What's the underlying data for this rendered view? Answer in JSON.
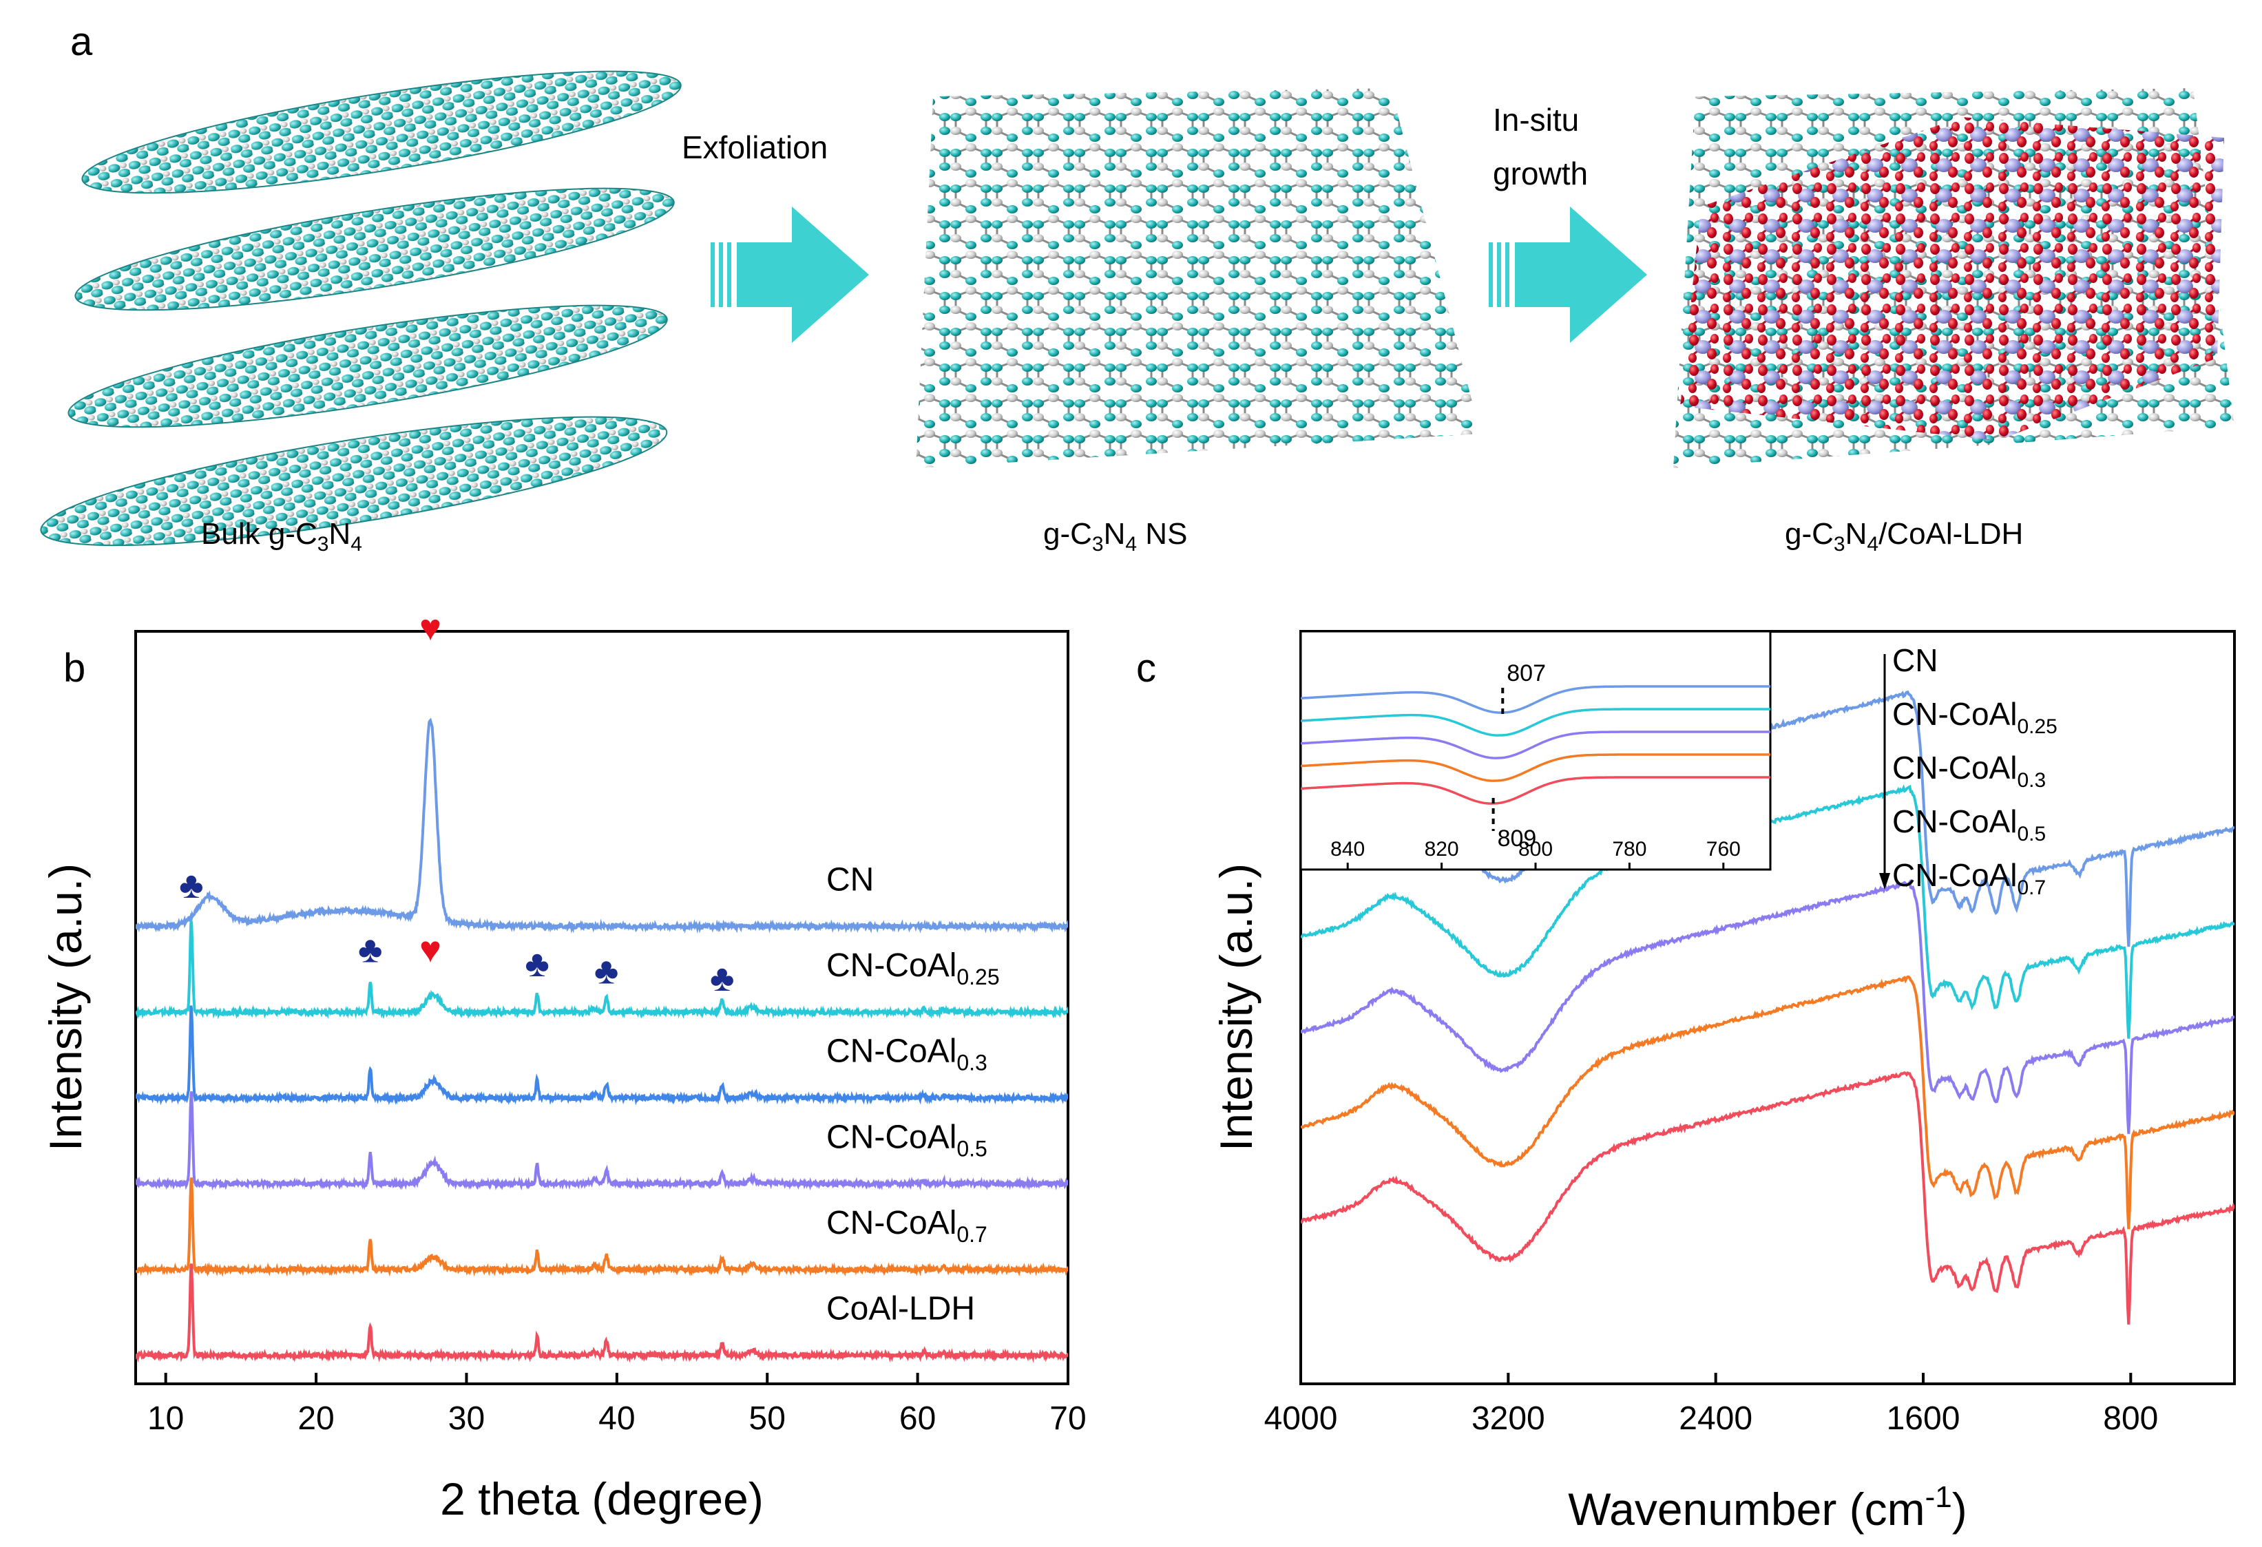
{
  "panel_labels": {
    "a": "a",
    "b": "b",
    "c": "c"
  },
  "schematic": {
    "step1": {
      "name": "Bulk g-C",
      "sub1": "3",
      "mid": "N",
      "sub2": "4",
      "suffix": ""
    },
    "arrow1": {
      "label": "Exfoliation"
    },
    "step2": {
      "name": "g-C",
      "sub1": "3",
      "mid": "N",
      "sub2": "4",
      "suffix": " NS"
    },
    "arrow2": {
      "label_line1": "In-situ",
      "label_line2": "growth"
    },
    "step3": {
      "name": "g-C",
      "sub1": "3",
      "mid": "N",
      "sub2": "4",
      "suffix": "/CoAl-LDH"
    },
    "colors": {
      "nitrogen": "#20b2b2",
      "carbon": "#d9d9d9",
      "oxygen": "#d0021b",
      "metal": "#9a9ae0",
      "arrow": "#3ed1d1"
    }
  },
  "chart_data": [
    {
      "id": "xrd",
      "type": "line",
      "xlabel": "2 theta (degree)",
      "ylabel": "Intensity (a.u.)",
      "xlim": [
        8,
        70
      ],
      "xticks": [
        10,
        20,
        30,
        40,
        50,
        60,
        70
      ],
      "ylim": [
        0,
        100
      ],
      "series": [
        {
          "name": "CN",
          "label_main": "CN",
          "label_sub": "",
          "color": "#6c9ae6",
          "offset": 64
        },
        {
          "name": "CN-CoAl0.25",
          "label_main": "CN-CoAl",
          "label_sub": "0.25",
          "color": "#27c8d8",
          "offset": 52
        },
        {
          "name": "CN-CoAl0.3",
          "label_main": "CN-CoAl",
          "label_sub": "0.3",
          "color": "#3f86e8",
          "offset": 40
        },
        {
          "name": "CN-CoAl0.5",
          "label_main": "CN-CoAl",
          "label_sub": "0.5",
          "color": "#8a7cf0",
          "offset": 28
        },
        {
          "name": "CN-CoAl0.7",
          "label_main": "CN-CoAl",
          "label_sub": "0.7",
          "color": "#f47a24",
          "offset": 16
        },
        {
          "name": "CoAl-LDH",
          "label_main": "CoAl-LDH",
          "label_sub": "",
          "color": "#f04c5c",
          "offset": 4
        }
      ],
      "markers": [
        {
          "symbol": "♥",
          "x": 27.6,
          "level": 104,
          "color": "#e8101e"
        },
        {
          "symbol": "♣",
          "x": 11.7,
          "level": 68,
          "color": "#1a2c8c"
        },
        {
          "symbol": "♣",
          "x": 23.6,
          "level": 59,
          "color": "#1a2c8c"
        },
        {
          "symbol": "♥",
          "x": 27.6,
          "level": 59,
          "color": "#e8101e"
        },
        {
          "symbol": "♣",
          "x": 34.7,
          "level": 57,
          "color": "#1a2c8c"
        },
        {
          "symbol": "♣",
          "x": 39.3,
          "level": 56,
          "color": "#1a2c8c"
        },
        {
          "symbol": "♣",
          "x": 47.0,
          "level": 55,
          "color": "#1a2c8c"
        }
      ]
    },
    {
      "id": "ftir",
      "type": "line",
      "xlabel": "Wavenumber (cm",
      "xlabel_sup": "-1",
      "xlabel_end": ")",
      "ylabel": "Intensity (a.u.)",
      "xlim": [
        4000,
        400
      ],
      "xticks": [
        4000,
        3200,
        2400,
        1600,
        800
      ],
      "legend": [
        {
          "main": "CN",
          "sub": ""
        },
        {
          "main": "CN-CoAl",
          "sub": "0.25"
        },
        {
          "main": "CN-CoAl",
          "sub": "0.3"
        },
        {
          "main": "CN-CoAl",
          "sub": "0.5"
        },
        {
          "main": "CN-CoAl",
          "sub": "0.7"
        }
      ],
      "series": [
        {
          "name": "CN",
          "color": "#6c9ae6",
          "offset": 60
        },
        {
          "name": "CN-CoAl0.25",
          "color": "#27c8d8",
          "offset": 46
        },
        {
          "name": "CN-CoAl0.3",
          "color": "#8a7cf0",
          "offset": 32
        },
        {
          "name": "CN-CoAl0.5",
          "color": "#f47a24",
          "offset": 18
        },
        {
          "name": "CN-CoAl0.7",
          "color": "#f04c5c",
          "offset": 4
        }
      ],
      "inset": {
        "xlim": [
          850,
          750
        ],
        "xticks": [
          840,
          820,
          800,
          780,
          760
        ],
        "annotation_top": "807",
        "annotation_bottom": "809",
        "x_top": 807,
        "x_bottom": 809
      }
    }
  ]
}
